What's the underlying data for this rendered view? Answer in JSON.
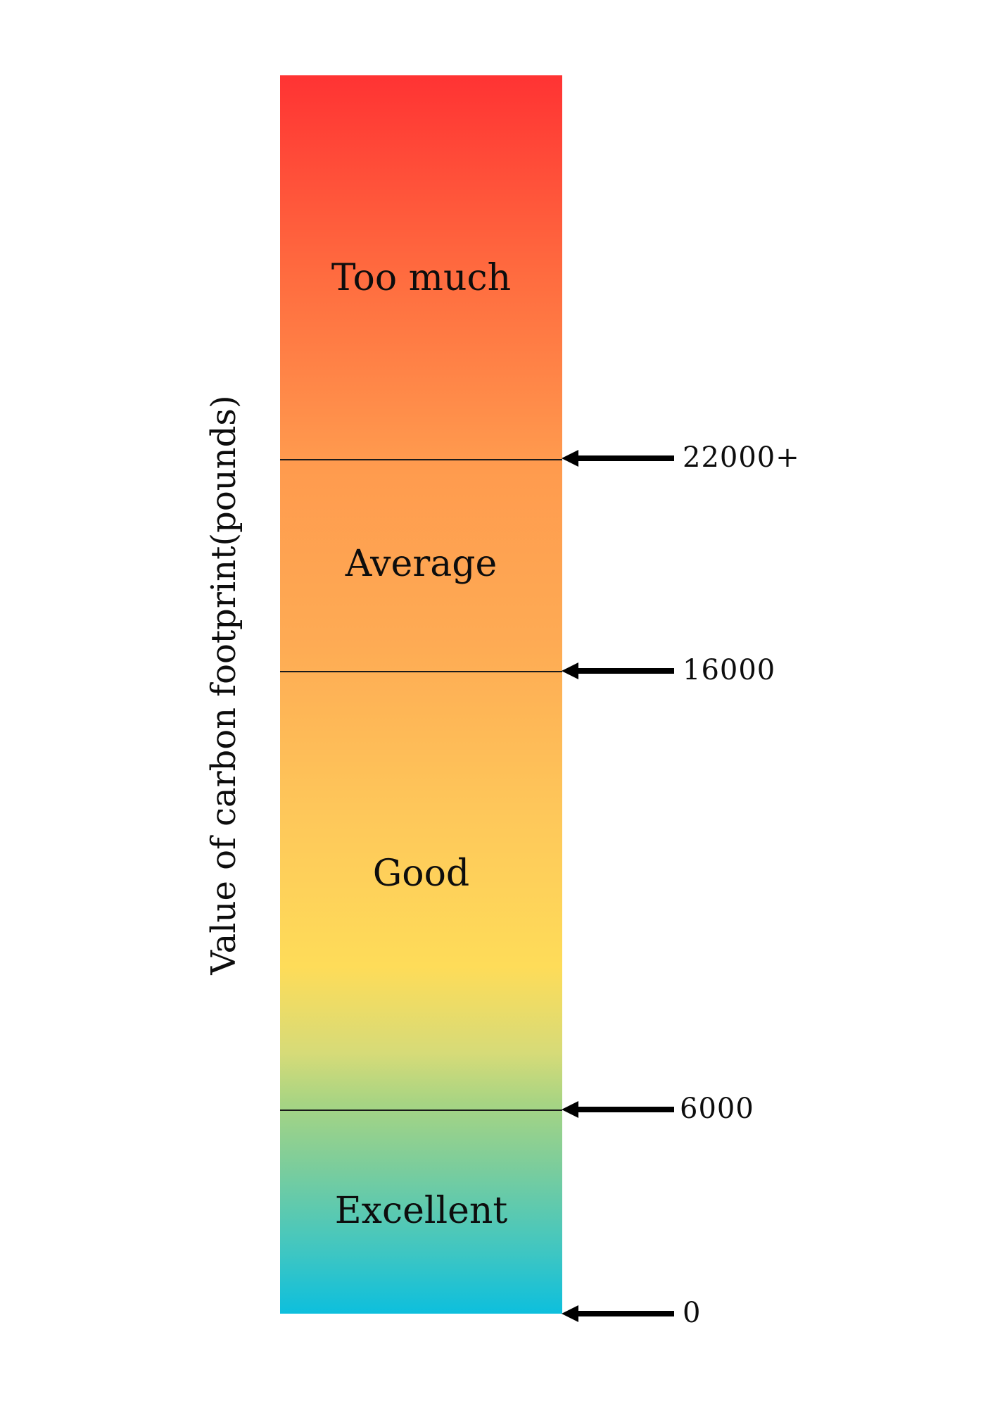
{
  "axis_title": "Value of carbon footprint(pounds)",
  "zones": [
    {
      "label": "Too much",
      "from": 22000,
      "to": null
    },
    {
      "label": "Average",
      "from": 16000,
      "to": 22000
    },
    {
      "label": "Good",
      "from": 6000,
      "to": 16000
    },
    {
      "label": "Excellent",
      "from": 0,
      "to": 6000
    }
  ],
  "thresholds": [
    {
      "label": "22000+",
      "value": 22000
    },
    {
      "label": "16000",
      "value": 16000
    },
    {
      "label": "6000",
      "value": 6000
    },
    {
      "label": "0",
      "value": 0
    }
  ],
  "colors": {
    "top": "#ff3333",
    "middle": "#fedc59",
    "bottom": "#0dbfdd",
    "arrow": "#000000"
  },
  "icons": {
    "marker": "arrow-left-icon"
  }
}
